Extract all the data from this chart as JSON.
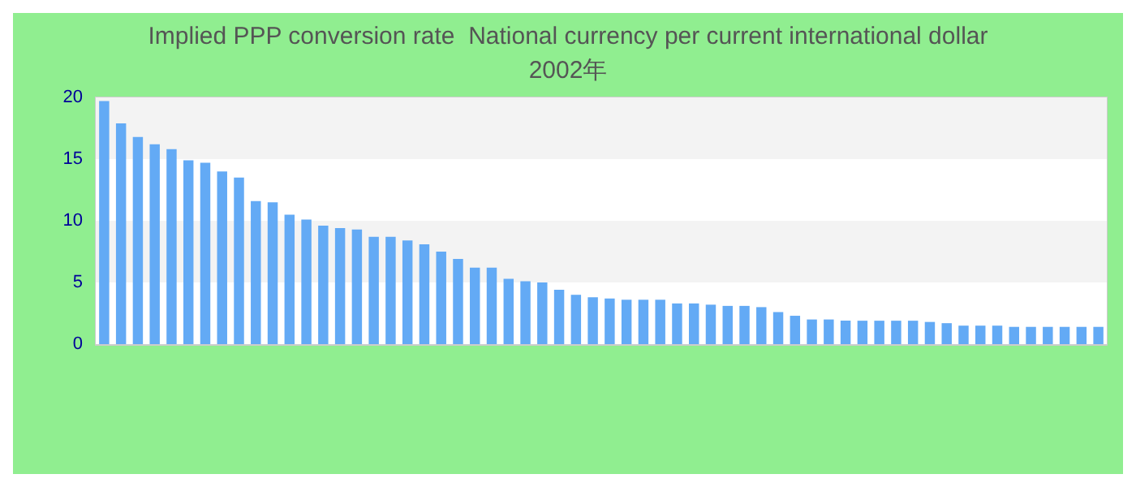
{
  "chart_data": {
    "type": "bar",
    "title": "Implied PPP conversion rate  National currency per current international dollar",
    "subtitle": "2002年",
    "categories": [
      null,
      null,
      null,
      null,
      null,
      null,
      null,
      null,
      null,
      null,
      null,
      null,
      null,
      null,
      null,
      null,
      null,
      null,
      null,
      null,
      null,
      null,
      null,
      null,
      null,
      null,
      null,
      null,
      null,
      null,
      null,
      null,
      null,
      null,
      null,
      null,
      null,
      null,
      null,
      null,
      null,
      null,
      null,
      null,
      null,
      null,
      null,
      null,
      null,
      null,
      null,
      null,
      null,
      null,
      null,
      null,
      null,
      null,
      null,
      null
    ],
    "values": [
      19.7,
      17.9,
      16.8,
      16.2,
      15.8,
      14.9,
      14.7,
      14.0,
      13.5,
      11.6,
      11.5,
      10.5,
      10.1,
      9.6,
      9.4,
      9.3,
      8.7,
      8.7,
      8.4,
      8.1,
      7.5,
      6.9,
      6.2,
      6.2,
      5.3,
      5.1,
      5.0,
      4.4,
      4.0,
      3.8,
      3.7,
      3.6,
      3.6,
      3.6,
      3.3,
      3.3,
      3.2,
      3.1,
      3.1,
      3.0,
      2.6,
      2.3,
      2.0,
      2.0,
      1.9,
      1.9,
      1.9,
      1.9,
      1.9,
      1.8,
      1.7,
      1.5,
      1.5,
      1.5,
      1.4,
      1.4,
      1.4,
      1.4,
      1.4,
      1.4
    ],
    "color": "#63aaf5",
    "ylim": [
      0,
      20
    ],
    "yticks": [
      0,
      5,
      10,
      15,
      20
    ]
  }
}
